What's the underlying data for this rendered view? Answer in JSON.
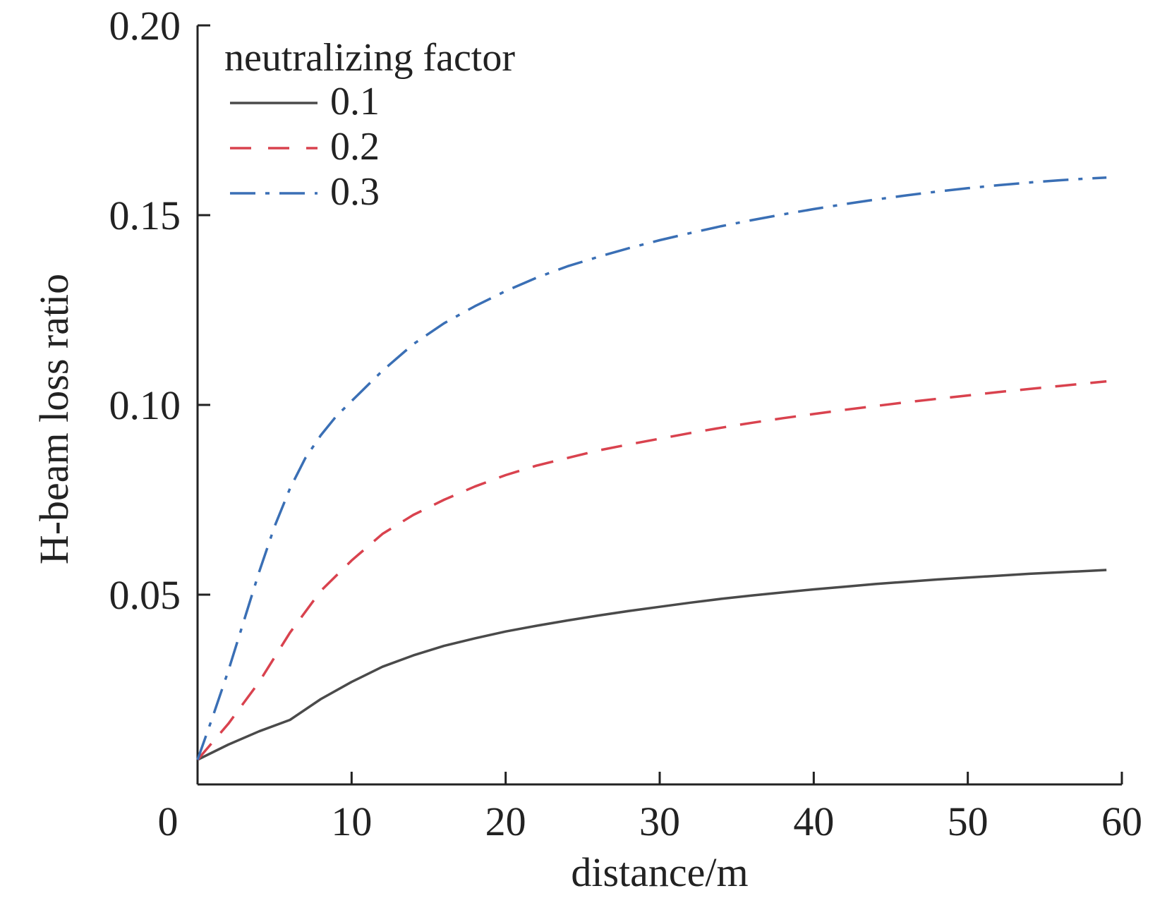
{
  "chart_data": {
    "type": "line",
    "title": "",
    "xlabel": "distance/m",
    "ylabel": "H-beam loss ratio",
    "xlim": [
      0,
      60
    ],
    "ylim": [
      0,
      0.2
    ],
    "x_ticks": [
      {
        "value": 0,
        "label": "0"
      },
      {
        "value": 10,
        "label": "10"
      },
      {
        "value": 20,
        "label": "20"
      },
      {
        "value": 30,
        "label": "30"
      },
      {
        "value": 40,
        "label": "40"
      },
      {
        "value": 50,
        "label": "50"
      },
      {
        "value": 60,
        "label": "60"
      }
    ],
    "y_ticks": [
      {
        "value": 0.05,
        "label": "0.05"
      },
      {
        "value": 0.1,
        "label": "0.10"
      },
      {
        "value": 0.15,
        "label": "0.15"
      },
      {
        "value": 0.2,
        "label": "0.20"
      }
    ],
    "grid": false,
    "legend": {
      "title": "neutralizing factor",
      "placement": "top-left"
    },
    "series": [
      {
        "name": "0.1",
        "color": "#4a4a4a",
        "dash": "solid",
        "x": [
          0,
          2,
          4,
          6,
          8,
          10,
          12,
          14,
          16,
          18,
          20,
          22,
          24,
          26,
          28,
          30,
          32,
          34,
          36,
          38,
          40,
          42,
          44,
          46,
          48,
          50,
          52,
          54,
          56,
          58,
          59
        ],
        "y": [
          0.0065,
          0.0105,
          0.014,
          0.017,
          0.0225,
          0.027,
          0.031,
          0.034,
          0.0365,
          0.0385,
          0.0403,
          0.0418,
          0.0432,
          0.0445,
          0.0457,
          0.0468,
          0.0479,
          0.0489,
          0.0498,
          0.0506,
          0.0514,
          0.0521,
          0.0528,
          0.0534,
          0.054,
          0.0545,
          0.055,
          0.0555,
          0.0559,
          0.0563,
          0.0565
        ]
      },
      {
        "name": "0.2",
        "color": "#d9424e",
        "dash": "dashed",
        "x": [
          0,
          2,
          4,
          6,
          8,
          10,
          12,
          14,
          16,
          18,
          20,
          22,
          24,
          26,
          28,
          30,
          32,
          34,
          36,
          38,
          40,
          42,
          44,
          46,
          48,
          50,
          52,
          54,
          56,
          58,
          59
        ],
        "y": [
          0.0065,
          0.016,
          0.027,
          0.04,
          0.051,
          0.059,
          0.066,
          0.071,
          0.075,
          0.0785,
          0.0815,
          0.084,
          0.086,
          0.088,
          0.0896,
          0.0911,
          0.0926,
          0.094,
          0.0953,
          0.0965,
          0.0976,
          0.0987,
          0.0997,
          0.1007,
          0.1016,
          0.1025,
          0.1034,
          0.1042,
          0.105,
          0.1058,
          0.1062
        ]
      },
      {
        "name": "0.3",
        "color": "#3a6fb5",
        "dash": "dashdot",
        "x": [
          0,
          1,
          2,
          3,
          4,
          5,
          6,
          7,
          8,
          9,
          10,
          12,
          14,
          16,
          18,
          20,
          22,
          24,
          26,
          28,
          30,
          32,
          34,
          36,
          38,
          40,
          42,
          44,
          46,
          48,
          50,
          52,
          54,
          56,
          58,
          59
        ],
        "y": [
          0.0065,
          0.018,
          0.03,
          0.043,
          0.056,
          0.068,
          0.078,
          0.086,
          0.092,
          0.097,
          0.101,
          0.109,
          0.116,
          0.1215,
          0.126,
          0.13,
          0.1335,
          0.1365,
          0.139,
          0.1413,
          0.1434,
          0.1453,
          0.1471,
          0.1487,
          0.1502,
          0.1516,
          0.1529,
          0.1541,
          0.1552,
          0.1562,
          0.1571,
          0.1579,
          0.1586,
          0.1592,
          0.1597,
          0.1599
        ]
      }
    ]
  }
}
